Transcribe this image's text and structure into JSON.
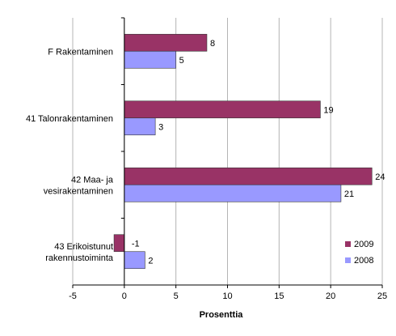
{
  "chart_data": {
    "type": "bar",
    "orientation": "horizontal",
    "categories": [
      [
        "F Rakentaminen"
      ],
      [
        "41 Talonrakentaminen"
      ],
      [
        "42 Maa- ja",
        "vesirakentaminen"
      ],
      [
        "43 Erikoistunut",
        "rakennustoiminta"
      ]
    ],
    "series": [
      {
        "name": "2009",
        "values": [
          8,
          19,
          24,
          -1
        ],
        "labels": [
          "8",
          "19",
          "24",
          "-1"
        ],
        "color": "#993366"
      },
      {
        "name": "2008",
        "values": [
          5,
          3,
          21,
          2
        ],
        "labels": [
          "5",
          "3",
          "21",
          "2"
        ],
        "color": "#9999ff"
      }
    ],
    "xlabel": "Prosenttia",
    "xlim": [
      -5,
      25
    ],
    "xticks": [
      -5,
      0,
      5,
      10,
      15,
      20,
      25
    ],
    "xtick_labels": [
      "-5",
      "0",
      "5",
      "10",
      "15",
      "20",
      "25"
    ],
    "grid": true,
    "legend_position": "bottom-right"
  }
}
